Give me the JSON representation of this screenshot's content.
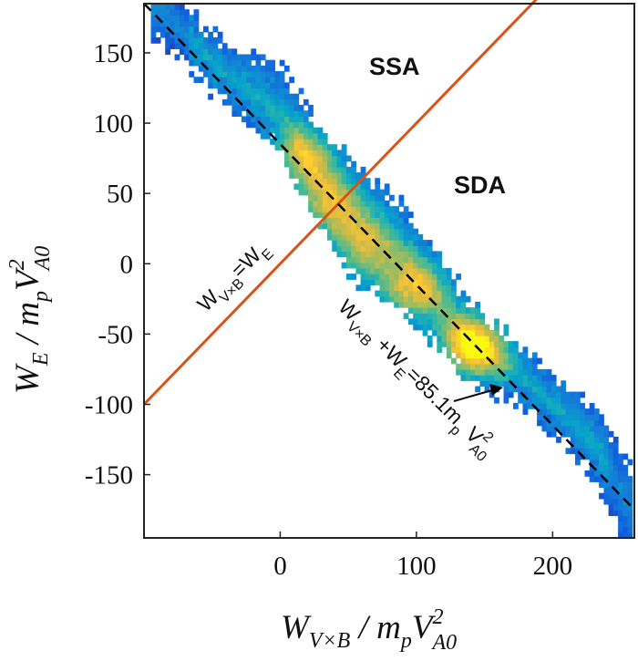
{
  "chart_data": {
    "type": "heatmap",
    "xlim": [
      -100,
      260
    ],
    "ylim": [
      -195,
      185
    ],
    "xticks": [
      0,
      100,
      200
    ],
    "yticks": [
      150,
      100,
      50,
      0,
      -50,
      -100,
      -150
    ],
    "xlabel": {
      "main": "W",
      "sub": "V×B",
      "mid": " / m",
      "sub2": "p",
      "tail": "V",
      "sup": "2",
      "sub3": "A0"
    },
    "ylabel": {
      "main": "W",
      "sub": "E",
      "mid": " / m",
      "sub2": "p",
      "tail": "V",
      "sup": "2",
      "sub3": "A0"
    },
    "grid": false,
    "colormap": "parula",
    "density_ridge": {
      "description_free_points": [
        [
          -90,
          180
        ],
        [
          -50,
          140
        ],
        [
          0,
          105
        ],
        [
          20,
          70
        ],
        [
          50,
          30
        ],
        [
          90,
          0
        ],
        [
          120,
          -35
        ],
        [
          140,
          -60
        ],
        [
          180,
          -85
        ],
        [
          230,
          -130
        ],
        [
          255,
          -175
        ]
      ],
      "peaks": [
        {
          "x": 140,
          "y": -60,
          "level": 1.0
        },
        {
          "x": 95,
          "y": -20,
          "level": 0.7
        },
        {
          "x": 15,
          "y": 75,
          "level": 0.65
        },
        {
          "x": 35,
          "y": 40,
          "level": 0.6
        },
        {
          "x": 60,
          "y": 10,
          "level": 0.55
        }
      ]
    },
    "lines": [
      {
        "name": "W_{V×B}=W_E",
        "color": "#d95319",
        "style": "solid",
        "points": [
          [
            -100,
            -100
          ],
          [
            200,
            200
          ]
        ]
      },
      {
        "name": "W_{V×B}+W_E=85.1 m_p V_{A0}^2",
        "color": "#000000",
        "style": "dashed",
        "points": [
          [
            -100,
            185.1
          ],
          [
            260,
            -174.9
          ]
        ]
      }
    ],
    "region_labels": [
      "SSA",
      "SDA"
    ],
    "annotations": {
      "equal_line": {
        "w": "W",
        "sub1": "V×B",
        "eq": "=W",
        "sub2": "E"
      },
      "sum_line": {
        "w": "W",
        "sub1": "V×B",
        "plus": " +W",
        "sub2": "E",
        "val": "=85.1m",
        "sub3": "p",
        "v": " V",
        "sup": "2",
        "sub4": "A0"
      }
    }
  }
}
